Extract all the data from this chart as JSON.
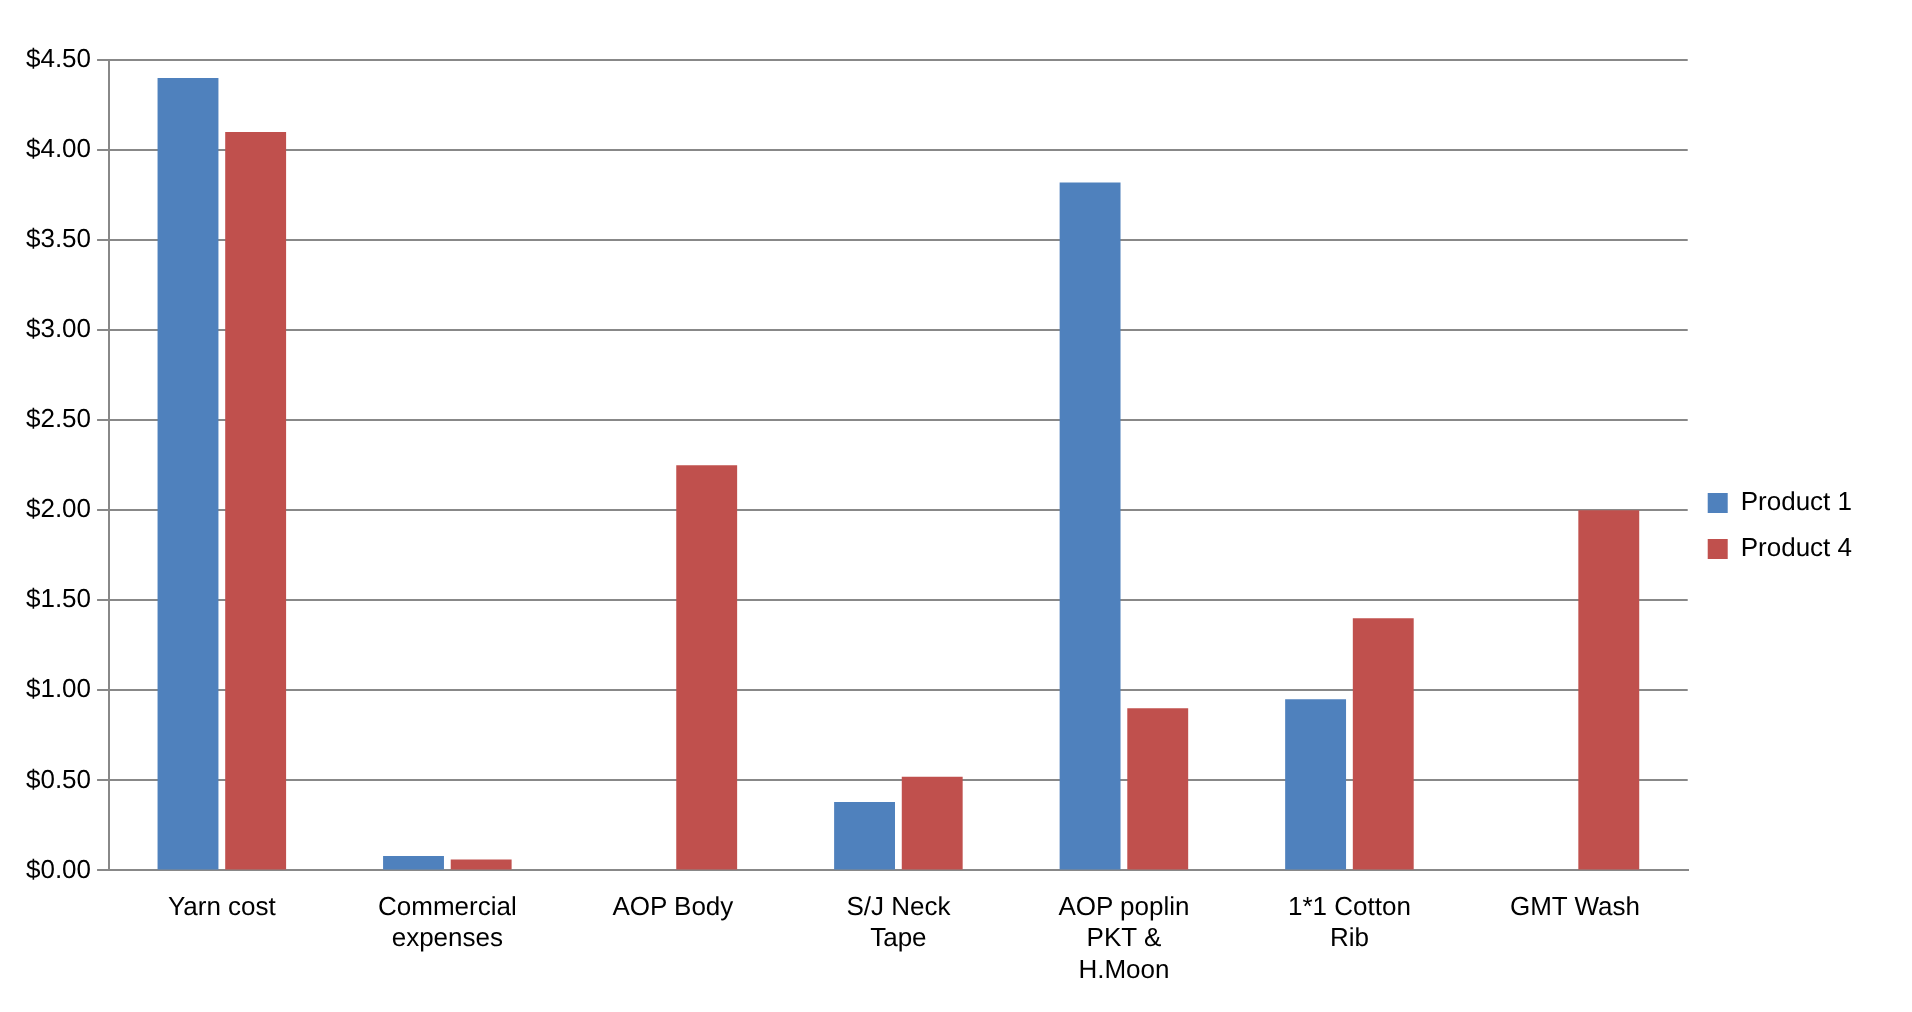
{
  "chart_data": {
    "type": "bar",
    "categories": [
      "Yarn cost",
      "Commercial expenses",
      "AOP Body",
      "S/J Neck Tape",
      "AOP poplin PKT & H.Moon",
      "1*1 Cotton Rib",
      "GMT Wash"
    ],
    "series": [
      {
        "name": "Product 1",
        "color": "#4f81bd",
        "values": [
          4.4,
          0.08,
          0,
          0.38,
          3.82,
          0.95,
          0
        ]
      },
      {
        "name": "Product 4",
        "color": "#c0504d",
        "values": [
          4.1,
          0.06,
          2.25,
          0.52,
          0.9,
          1.4,
          2.0
        ]
      }
    ],
    "ylim": [
      0,
      4.5
    ],
    "yticks": [
      {
        "value": 0,
        "label": "$0.00"
      },
      {
        "value": 0.5,
        "label": "$0.50"
      },
      {
        "value": 1,
        "label": "$1.00"
      },
      {
        "value": 1.5,
        "label": "$1.50"
      },
      {
        "value": 2,
        "label": "$2.00"
      },
      {
        "value": 2.5,
        "label": "$2.50"
      },
      {
        "value": 3,
        "label": "$3.00"
      },
      {
        "value": 3.5,
        "label": "$3.50"
      },
      {
        "value": 4,
        "label": "$4.00"
      },
      {
        "value": 4.5,
        "label": "$4.50"
      }
    ],
    "grid": "y",
    "legend": "right"
  }
}
